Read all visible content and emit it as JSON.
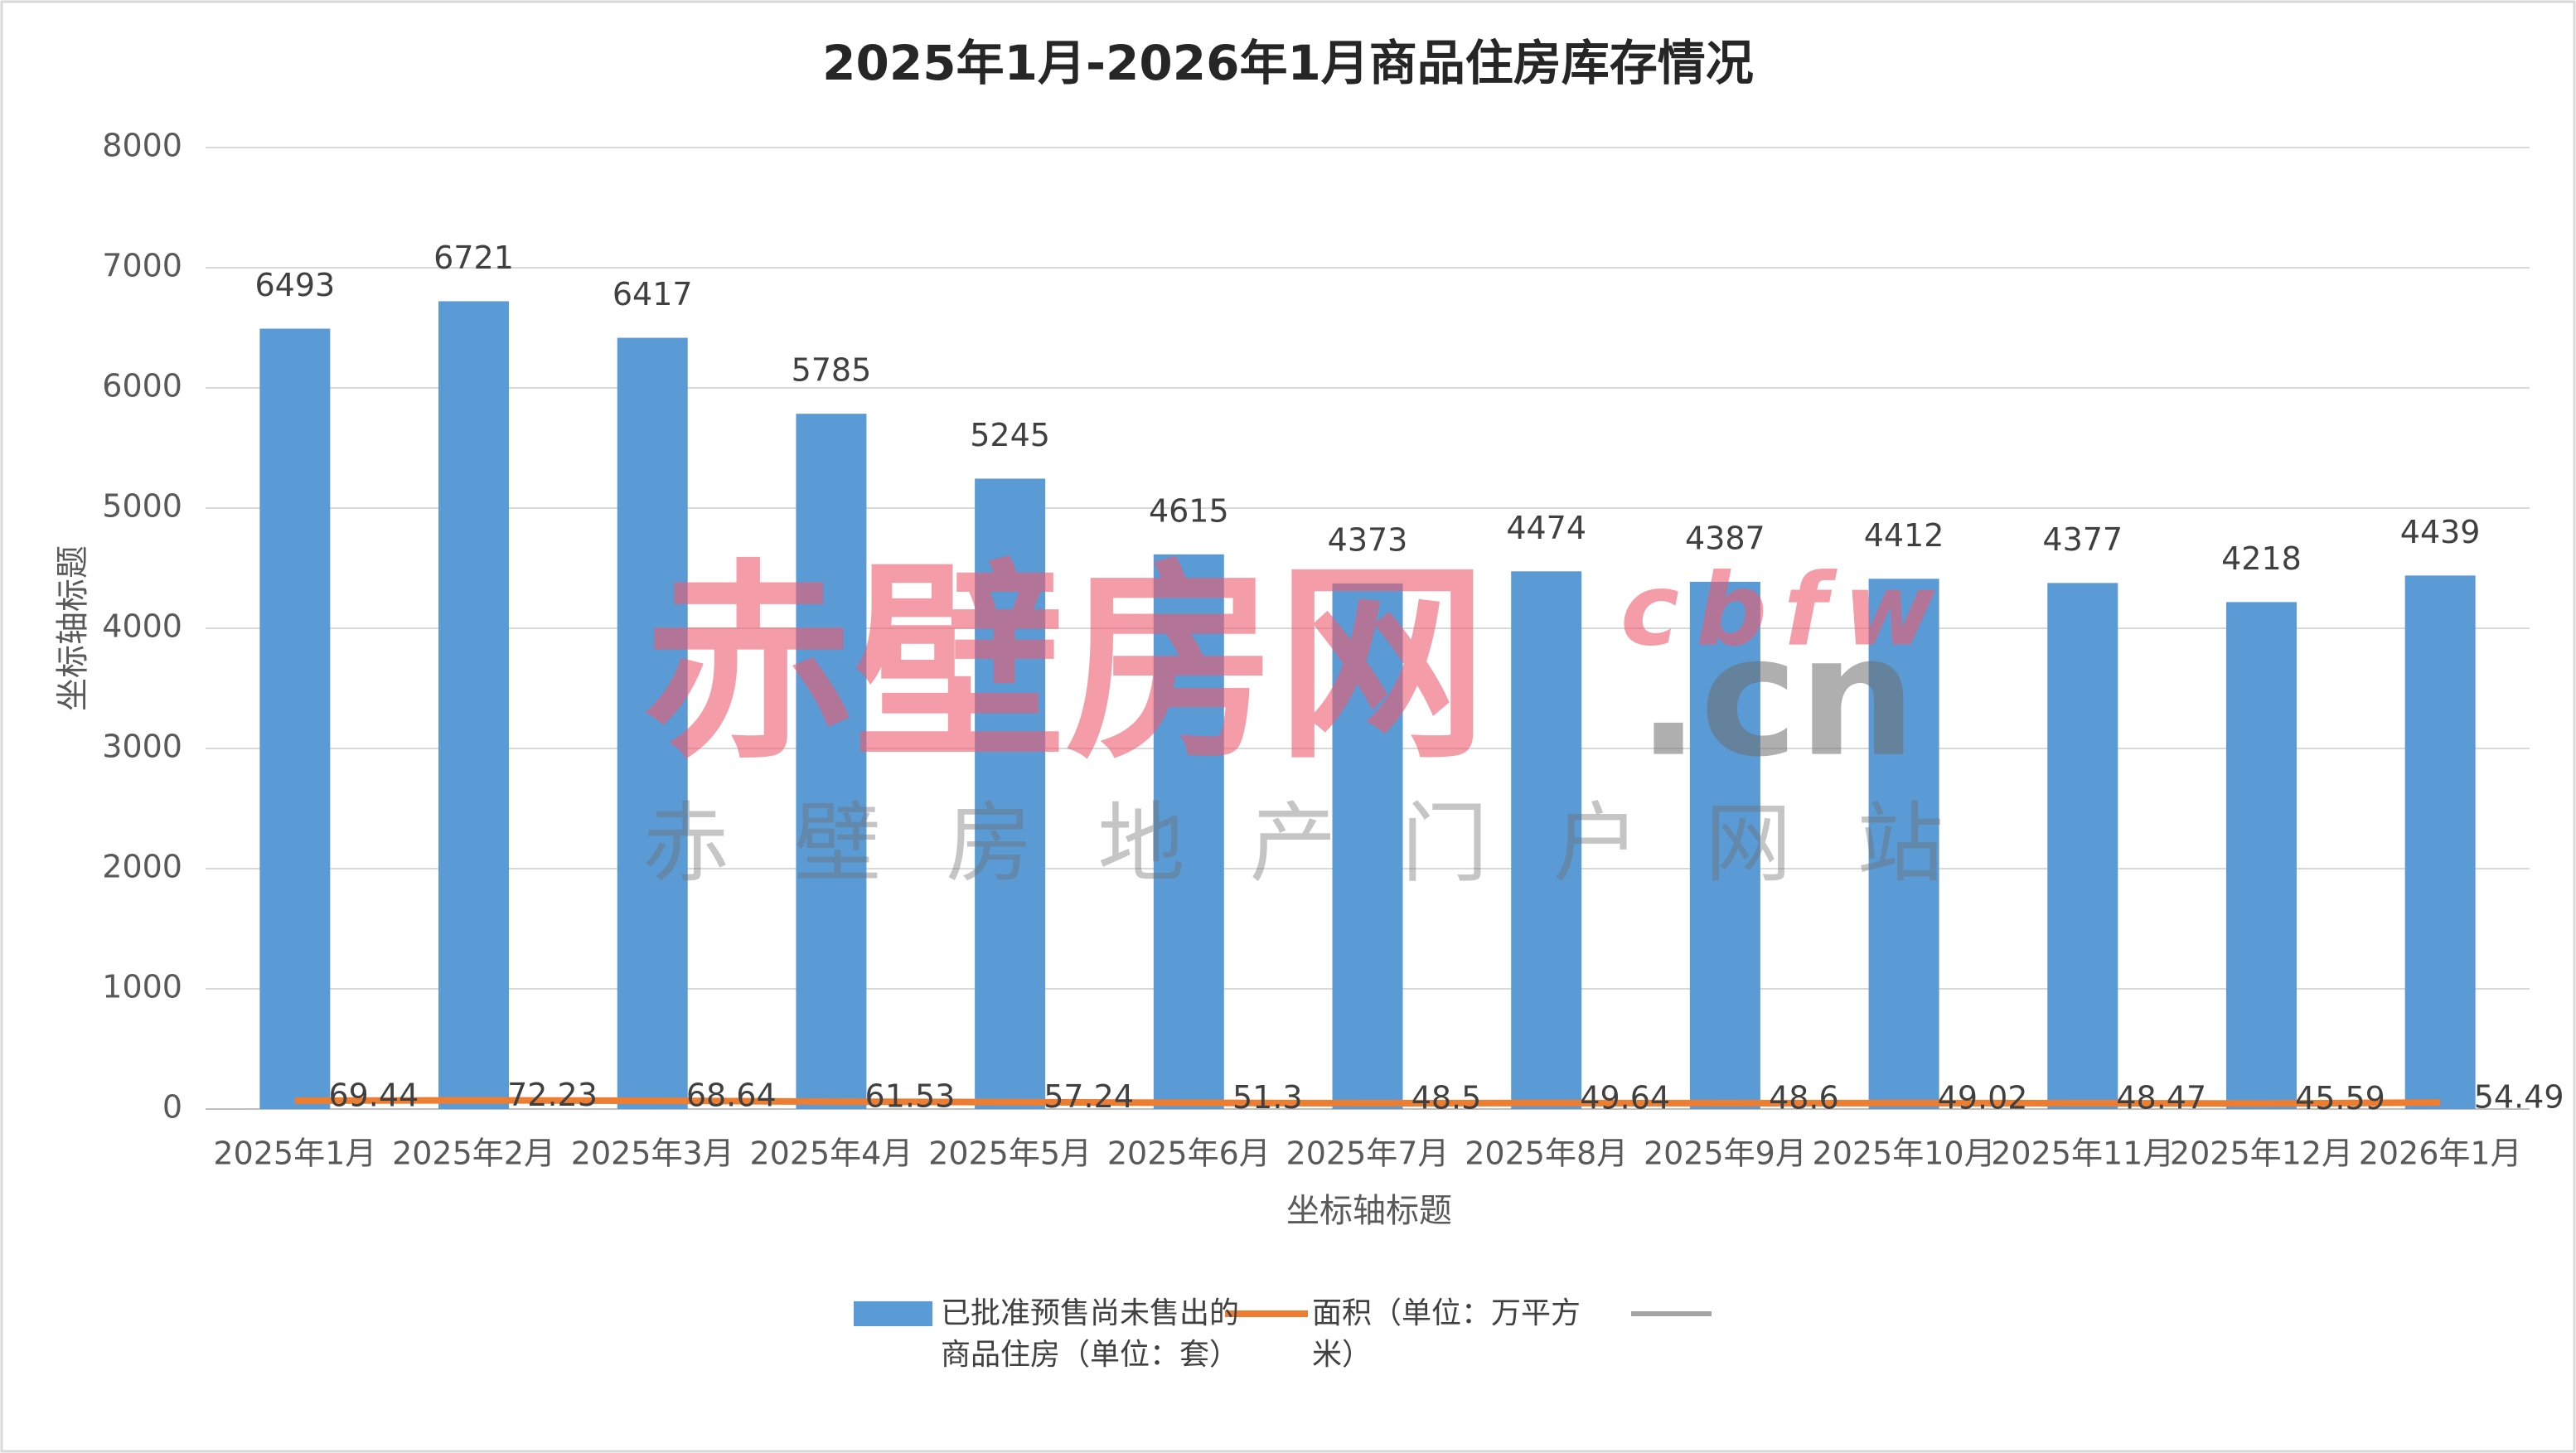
{
  "chart_data": {
    "type": "bar",
    "title": "2025年1月-2026年1月商品住房库存情况",
    "x_label": "坐标轴标题",
    "y_label": "坐标轴标题",
    "categories": [
      "2025年1月",
      "2025年2月",
      "2025年3月",
      "2025年4月",
      "2025年5月",
      "2025年6月",
      "2025年7月",
      "2025年8月",
      "2025年9月",
      "2025年10月",
      "2025年11月",
      "2025年12月",
      "2026年1月"
    ],
    "series": [
      {
        "name": "已批准预售尚未售出的商品住房（单位：套）",
        "type": "bar",
        "color": "#5b9bd5",
        "values": [
          6493,
          6721,
          6417,
          5785,
          5245,
          4615,
          4373,
          4474,
          4387,
          4412,
          4377,
          4218,
          4439
        ]
      },
      {
        "name": "面积（单位：万平方米）",
        "type": "line",
        "color": "#ed7d31",
        "values": [
          69.44,
          72.23,
          68.64,
          61.53,
          57.24,
          51.3,
          48.5,
          49.64,
          48.6,
          49.02,
          48.47,
          45.59,
          54.49
        ]
      }
    ],
    "ylim": [
      0,
      8000
    ],
    "yticks": [
      0,
      1000,
      2000,
      3000,
      4000,
      5000,
      6000,
      7000,
      8000
    ],
    "grid": true,
    "legend": "bottom",
    "watermark": {
      "brand": "赤壁房网",
      "latin": "cbfw",
      "domain": ".cn",
      "tagline": "赤 壁 房 地 产 门 户 网 站"
    }
  }
}
